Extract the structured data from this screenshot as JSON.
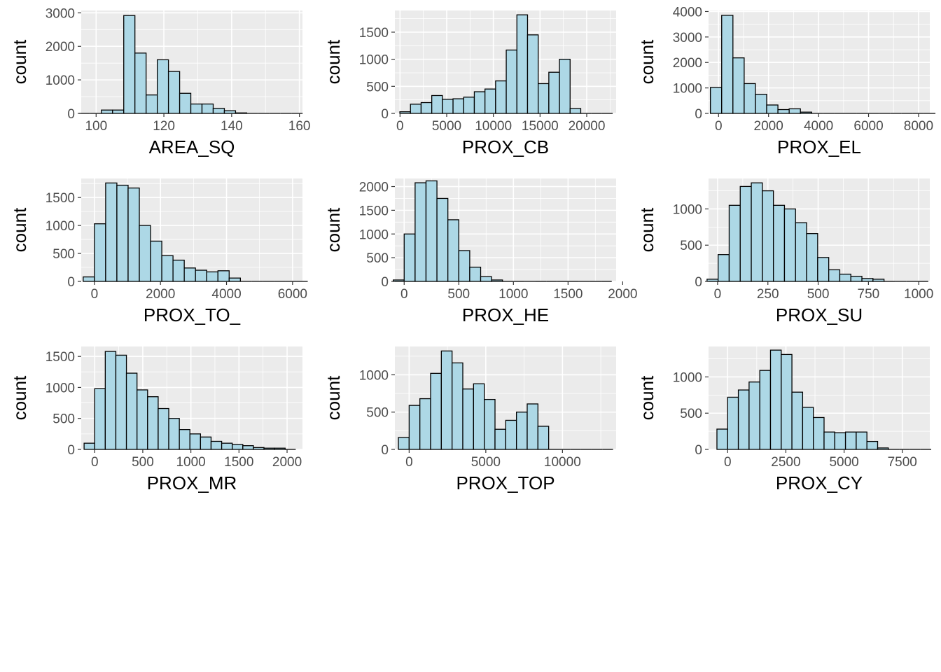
{
  "style": {
    "panel_background": "#ebebeb",
    "grid_color": "#ffffff",
    "bar_fill": "#add8e6",
    "bar_stroke": "#000000",
    "tick_color": "#333333",
    "tick_label_color": "#4d4d4d"
  },
  "chart_data": [
    {
      "type": "bar",
      "xlabel": "AREA_SQ",
      "ylabel": "count",
      "bins": 20,
      "xlim": [
        95.6,
        160.9
      ],
      "ylim": [
        0,
        3070
      ],
      "x_ticks": [
        100,
        120,
        140,
        160
      ],
      "y_ticks": [
        0,
        1000,
        2000,
        3000
      ],
      "bin_start": 96.6,
      "bin_width": 3.3,
      "counts": [
        0,
        0,
        100,
        100,
        2920,
        1800,
        550,
        1600,
        1250,
        600,
        280,
        280,
        150,
        80,
        15,
        0,
        0,
        0,
        0,
        0
      ],
      "grid_on": true
    },
    {
      "type": "bar",
      "xlabel": "PROX_CB",
      "ylabel": "count",
      "bins": 20,
      "xlim": [
        -550,
        23150
      ],
      "ylim": [
        0,
        1900
      ],
      "x_ticks": [
        0,
        5000,
        10000,
        15000,
        20000
      ],
      "y_ticks": [
        0,
        500,
        1000,
        1500
      ],
      "bin_start": 550,
      "bin_width": 1140,
      "counts": [
        30,
        170,
        200,
        330,
        260,
        270,
        300,
        400,
        450,
        600,
        1170,
        1820,
        1450,
        550,
        760,
        1000,
        90,
        0,
        0,
        0
      ],
      "grid_on": true
    },
    {
      "type": "bar",
      "xlabel": "PROX_EL",
      "ylabel": "count",
      "bins": 20,
      "xlim": [
        -400,
        8450
      ],
      "ylim": [
        0,
        4040
      ],
      "x_ticks": [
        0,
        2000,
        4000,
        6000,
        8000
      ],
      "y_ticks": [
        0,
        1000,
        2000,
        3000,
        4000
      ],
      "bin_start": -100,
      "bin_width": 450,
      "counts": [
        1020,
        3850,
        2180,
        1170,
        750,
        330,
        150,
        180,
        50,
        0,
        0,
        0,
        0,
        0,
        0,
        0,
        0,
        0,
        0,
        0
      ],
      "grid_on": true
    },
    {
      "type": "bar",
      "xlabel": "PROX_TO_",
      "ylabel": "count",
      "bins": 20,
      "xlim": [
        -400,
        6300
      ],
      "ylim": [
        0,
        1840
      ],
      "x_ticks": [
        0,
        2000,
        4000,
        6000
      ],
      "y_ticks": [
        0,
        500,
        1000,
        1500
      ],
      "bin_start": -170,
      "bin_width": 340,
      "counts": [
        80,
        1030,
        1760,
        1720,
        1670,
        1000,
        720,
        460,
        380,
        240,
        200,
        170,
        190,
        60,
        0,
        0,
        0,
        0,
        0,
        0
      ],
      "grid_on": true
    },
    {
      "type": "bar",
      "xlabel": "PROX_HE",
      "ylabel": "count",
      "bins": 20,
      "xlim": [
        -85,
        1940
      ],
      "ylim": [
        0,
        2170
      ],
      "x_ticks": [
        0,
        500,
        1000,
        1500,
        2000
      ],
      "y_ticks": [
        0,
        500,
        1000,
        1500,
        2000
      ],
      "bin_start": -50,
      "bin_width": 100,
      "counts": [
        30,
        1000,
        2080,
        2120,
        1750,
        1300,
        650,
        300,
        100,
        30,
        0,
        0,
        0,
        0,
        0,
        0,
        0,
        0,
        0,
        0
      ],
      "grid_on": true
    },
    {
      "type": "bar",
      "xlabel": "PROX_SU",
      "ylabel": "count",
      "bins": 20,
      "xlim": [
        -45,
        1055
      ],
      "ylim": [
        0,
        1420
      ],
      "x_ticks": [
        0,
        250,
        500,
        750,
        1000
      ],
      "y_ticks": [
        0,
        500,
        1000
      ],
      "bin_start": -25,
      "bin_width": 55,
      "counts": [
        30,
        370,
        1050,
        1310,
        1360,
        1250,
        1050,
        1000,
        810,
        660,
        330,
        160,
        100,
        70,
        40,
        30,
        0,
        0,
        0,
        0
      ],
      "grid_on": true
    },
    {
      "type": "bar",
      "xlabel": "PROX_MR",
      "ylabel": "count",
      "bins": 20,
      "xlim": [
        -140,
        2160
      ],
      "ylim": [
        0,
        1660
      ],
      "x_ticks": [
        0,
        500,
        1000,
        1500,
        2000
      ],
      "y_ticks": [
        0,
        500,
        1000,
        1500
      ],
      "bin_start": -55,
      "bin_width": 110,
      "counts": [
        100,
        980,
        1580,
        1520,
        1230,
        960,
        850,
        660,
        500,
        320,
        250,
        200,
        130,
        100,
        80,
        60,
        30,
        20,
        20,
        0
      ],
      "grid_on": true
    },
    {
      "type": "bar",
      "xlabel": "PROX_TOP",
      "ylabel": "count",
      "bins": 20,
      "xlim": [
        -930,
        13500
      ],
      "ylim": [
        0,
        1380
      ],
      "x_ticks": [
        0,
        5000,
        10000
      ],
      "y_ticks": [
        0,
        500,
        1000
      ],
      "bin_start": -350,
      "bin_width": 700,
      "counts": [
        160,
        590,
        680,
        1020,
        1320,
        1160,
        810,
        880,
        670,
        270,
        390,
        500,
        610,
        310,
        0,
        0,
        0,
        0,
        0,
        0
      ],
      "grid_on": true
    },
    {
      "type": "bar",
      "xlabel": "PROX_CY",
      "ylabel": "count",
      "bins": 20,
      "xlim": [
        -820,
        8680
      ],
      "ylim": [
        0,
        1420
      ],
      "x_ticks": [
        0,
        2500,
        5000,
        7500
      ],
      "y_ticks": [
        0,
        500,
        1000
      ],
      "bin_start": -230,
      "bin_width": 460,
      "counts": [
        280,
        720,
        820,
        930,
        1090,
        1370,
        1310,
        790,
        580,
        440,
        240,
        230,
        240,
        240,
        110,
        20,
        0,
        0,
        0,
        0
      ],
      "grid_on": true
    }
  ]
}
